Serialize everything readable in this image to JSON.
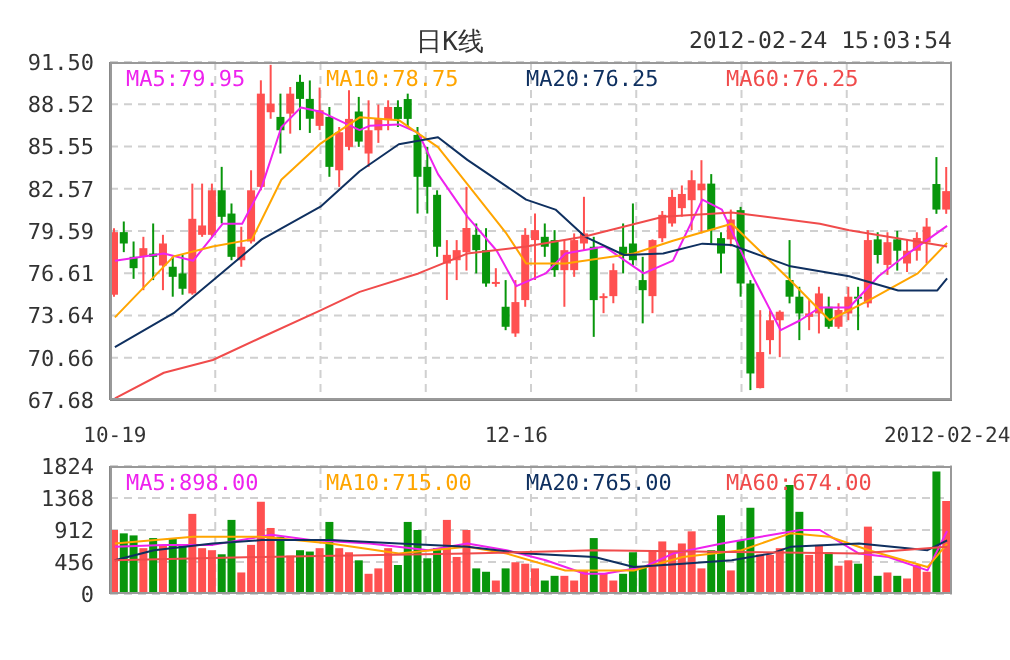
{
  "chart_data": [
    {
      "type": "candlestick",
      "title": "日K线",
      "annotations": [
        "2012-02-24 15:03:54"
      ],
      "categories": [
        "10-19",
        null,
        null,
        null,
        null,
        null,
        null,
        null,
        null,
        null,
        null,
        null,
        null,
        null,
        null,
        null,
        null,
        null,
        null,
        null,
        null,
        null,
        null,
        null,
        null,
        null,
        null,
        null,
        null,
        null,
        null,
        null,
        null,
        null,
        null,
        null,
        null,
        null,
        null,
        null,
        null,
        "12-16",
        null,
        null,
        null,
        null,
        null,
        null,
        null,
        null,
        null,
        null,
        null,
        null,
        null,
        null,
        null,
        null,
        null,
        null,
        null,
        null,
        null,
        null,
        null,
        null,
        null,
        null,
        null,
        null,
        null,
        null,
        null,
        null,
        null,
        null,
        null,
        null,
        null,
        null,
        null,
        null,
        null,
        null,
        null,
        "2012-02-24"
      ],
      "ohlc": [
        [
          75.1,
          79.79,
          74.96,
          79.51
        ],
        [
          79.51,
          80.26,
          78.1,
          78.71
        ],
        [
          77.77,
          78.85,
          76.22,
          76.97
        ],
        [
          77.77,
          79.18,
          75.42,
          78.38
        ],
        [
          78.0,
          80.12,
          76.13,
          77.77
        ],
        [
          77.16,
          79.32,
          75.42,
          78.71
        ],
        [
          77.07,
          77.77,
          74.96,
          76.36
        ],
        [
          76.6,
          77.91,
          75.1,
          75.52
        ],
        [
          75.19,
          82.93,
          75.1,
          80.45
        ],
        [
          79.32,
          82.93,
          79.18,
          79.98
        ],
        [
          79.32,
          82.93,
          79.18,
          82.46
        ],
        [
          82.46,
          84.11,
          80.12,
          80.59
        ],
        [
          80.82,
          81.53,
          77.53,
          77.77
        ],
        [
          77.53,
          79.89,
          77.07,
          78.48
        ],
        [
          78.85,
          83.87,
          78.71,
          82.46
        ],
        [
          82.7,
          90.21,
          82.46,
          89.27
        ],
        [
          87.96,
          91.3,
          87.5,
          88.57
        ],
        [
          87.63,
          89.27,
          85.05,
          86.69
        ],
        [
          87.86,
          89.74,
          86.45,
          89.27
        ],
        [
          90.1,
          90.6,
          86.7,
          88.9
        ],
        [
          88.9,
          90.2,
          86.5,
          87.5
        ],
        [
          87.0,
          89.7,
          86.7,
          88.1
        ],
        [
          87.63,
          88.33,
          83.41,
          84.11
        ],
        [
          83.87,
          86.92,
          82.7,
          86.55
        ],
        [
          85.52,
          89.51,
          85.28,
          87.49
        ],
        [
          88.01,
          89.04,
          85.52,
          85.89
        ],
        [
          85.05,
          88.8,
          84.11,
          86.69
        ],
        [
          86.69,
          88.5,
          85.8,
          87.49
        ],
        [
          87.4,
          88.8,
          86.69,
          88.33
        ],
        [
          88.33,
          88.8,
          86.92,
          87.49
        ],
        [
          88.89,
          89.27,
          86.92,
          87.49
        ],
        [
          86.36,
          86.92,
          80.82,
          83.41
        ],
        [
          84.11,
          85.52,
          80.82,
          82.7
        ],
        [
          82.14,
          82.46,
          77.77,
          78.48
        ],
        [
          77.3,
          78.95,
          74.73,
          77.91
        ],
        [
          77.53,
          78.95,
          76.13,
          78.24
        ],
        [
          78.1,
          82.7,
          76.8,
          79.8
        ],
        [
          79.32,
          80.12,
          76.6,
          78.24
        ],
        [
          78.24,
          79.79,
          75.66,
          75.89
        ],
        [
          75.9,
          76.97,
          75.66,
          76.0
        ],
        [
          74.25,
          76.13,
          72.6,
          72.84
        ],
        [
          72.37,
          76.13,
          72.13,
          74.58
        ],
        [
          74.72,
          79.79,
          74.25,
          79.32
        ],
        [
          78.95,
          80.82,
          76.13,
          79.65
        ],
        [
          79.18,
          80.12,
          77.77,
          78.48
        ],
        [
          78.95,
          79.65,
          76.36,
          76.83
        ],
        [
          76.83,
          78.95,
          74.25,
          78.24
        ],
        [
          76.83,
          79.42,
          76.36,
          78.95
        ],
        [
          78.71,
          82.0,
          78.24,
          79.42
        ],
        [
          78.48,
          79.18,
          72.13,
          74.72
        ],
        [
          74.9,
          75.2,
          73.8,
          75.0
        ],
        [
          75.0,
          77.3,
          74.5,
          76.83
        ],
        [
          78.48,
          80.12,
          76.6,
          77.91
        ],
        [
          78.71,
          81.53,
          77.16,
          77.53
        ],
        [
          76.13,
          77.77,
          73.08,
          75.42
        ],
        [
          75.0,
          79.0,
          73.8,
          78.95
        ],
        [
          79.08,
          81.0,
          78.8,
          80.73
        ],
        [
          80.12,
          82.5,
          79.9,
          81.99
        ],
        [
          81.2,
          82.8,
          80.6,
          82.2
        ],
        [
          81.76,
          83.87,
          79.65,
          83.17
        ],
        [
          82.46,
          84.58,
          79.42,
          82.93
        ],
        [
          82.93,
          83.6,
          78.71,
          79.65
        ],
        [
          79.09,
          79.5,
          76.6,
          78.0
        ],
        [
          79.0,
          81.1,
          78.5,
          80.4
        ],
        [
          81.06,
          81.29,
          74.96,
          75.89
        ],
        [
          75.89,
          76.13,
          68.38,
          69.55
        ],
        [
          68.52,
          74.01,
          68.5,
          71.06
        ],
        [
          71.9,
          74.0,
          70.9,
          73.3
        ],
        [
          73.3,
          74.0,
          70.7,
          73.9
        ],
        [
          76.13,
          78.95,
          74.49,
          74.96
        ],
        [
          74.96,
          75.66,
          71.9,
          73.78
        ],
        [
          73.54,
          74.72,
          72.6,
          73.78
        ],
        [
          73.78,
          75.66,
          72.37,
          75.19
        ],
        [
          74.25,
          74.96,
          72.7,
          72.84
        ],
        [
          72.84,
          74.5,
          72.7,
          74.02
        ],
        [
          73.78,
          75.66,
          73.3,
          74.96
        ],
        [
          74.96,
          75.66,
          72.6,
          74.9
        ],
        [
          74.49,
          79.65,
          74.2,
          78.95
        ],
        [
          79.0,
          79.5,
          77.3,
          77.9
        ],
        [
          77.2,
          79.5,
          76.5,
          78.8
        ],
        [
          79.0,
          79.6,
          76.8,
          78.2
        ],
        [
          77.3,
          79.0,
          76.7,
          78.2
        ],
        [
          78.2,
          79.5,
          77.5,
          79.1
        ],
        [
          78.8,
          80.5,
          77.3,
          79.9
        ],
        [
          82.9,
          84.8,
          80.8,
          81.1
        ],
        [
          81.1,
          84.1,
          80.8,
          82.4
        ]
      ],
      "colors": [
        "#ff5050",
        "#08960b",
        "#08960b",
        "#ff5050",
        "#08960b",
        "#ff5050",
        "#08960b",
        "#08960b",
        "#ff5050",
        "#ff5050",
        "#ff5050",
        "#08960b",
        "#08960b",
        "#ff5050",
        "#ff5050",
        "#ff5050",
        "#ff5050",
        "#08960b",
        "#ff5050",
        "#08960b",
        "#08960b",
        "#ff5050",
        "#08960b",
        "#ff5050",
        "#ff5050",
        "#08960b",
        "#ff5050",
        "#ff5050",
        "#ff5050",
        "#08960b",
        "#08960b",
        "#08960b",
        "#08960b",
        "#08960b",
        "#ff5050",
        "#ff5050",
        "#ff5050",
        "#08960b",
        "#08960b",
        "#ff5050",
        "#08960b",
        "#ff5050",
        "#ff5050",
        "#ff5050",
        "#08960b",
        "#08960b",
        "#ff5050",
        "#ff5050",
        "#ff5050",
        "#08960b",
        "#ff5050",
        "#ff5050",
        "#08960b",
        "#08960b",
        "#08960b",
        "#ff5050",
        "#ff5050",
        "#ff5050",
        "#ff5050",
        "#ff5050",
        "#ff5050",
        "#08960b",
        "#08960b",
        "#ff5050",
        "#08960b",
        "#08960b",
        "#ff5050",
        "#ff5050",
        "#ff5050",
        "#08960b",
        "#08960b",
        "#ff5050",
        "#ff5050",
        "#08960b",
        "#ff5050",
        "#ff5050",
        "#08960b",
        "#ff5050",
        "#08960b",
        "#ff5050",
        "#08960b",
        "#ff5050",
        "#ff5050",
        "#ff5050",
        "#08960b",
        "#ff5050"
      ],
      "series": [
        {
          "type": "line",
          "name": "MA5:79.95",
          "color": "#ee22ee",
          "values": [
            77.5,
            null,
            null,
            null,
            null,
            78.0,
            null,
            null,
            77.5,
            null,
            null,
            80.1,
            null,
            80.1,
            null,
            82.7,
            null,
            86.9,
            null,
            88.3,
            null,
            88.0,
            null,
            null,
            null,
            86.7,
            87.0,
            null,
            null,
            87.1,
            null,
            86.5,
            null,
            83.6,
            null,
            null,
            80.6,
            null,
            null,
            78.2,
            null,
            75.7,
            null,
            null,
            76.6,
            null,
            78.0,
            null,
            null,
            null,
            78.5,
            null,
            null,
            null,
            76.6,
            null,
            null,
            77.5,
            null,
            null,
            81.8,
            null,
            81.1,
            null,
            null,
            76.6,
            null,
            null,
            72.6,
            null,
            73.3,
            null,
            74.2,
            null,
            null,
            74.2,
            null,
            null,
            76.4,
            null,
            null,
            78.0,
            null,
            null,
            null,
            79.95
          ]
        },
        {
          "type": "line",
          "name": "MA10:78.75",
          "color": "#ffa500",
          "values": [
            73.5,
            null,
            null,
            null,
            null,
            null,
            77.8,
            null,
            null,
            null,
            78.5,
            null,
            null,
            null,
            79.0,
            null,
            null,
            83.2,
            null,
            null,
            null,
            85.75,
            null,
            null,
            null,
            87.6,
            null,
            null,
            null,
            87.4,
            null,
            null,
            null,
            85.5,
            null,
            null,
            82.9,
            null,
            null,
            null,
            79.4,
            null,
            77.3,
            null,
            null,
            null,
            77.3,
            null,
            null,
            null,
            null,
            null,
            null,
            78.0,
            null,
            null,
            null,
            78.9,
            null,
            null,
            null,
            null,
            null,
            80.1,
            null,
            null,
            null,
            null,
            null,
            76.1,
            null,
            null,
            null,
            73.3,
            null,
            null,
            null,
            74.7,
            null,
            null,
            null,
            null,
            76.6,
            null,
            null,
            78.75
          ]
        },
        {
          "type": "line",
          "name": "MA20:76.25",
          "color": "#0f3060",
          "values": [
            71.4,
            null,
            null,
            null,
            null,
            null,
            73.8,
            null,
            null,
            null,
            76.1,
            null,
            null,
            null,
            null,
            79.0,
            null,
            null,
            null,
            null,
            null,
            81.3,
            null,
            null,
            null,
            83.8,
            null,
            null,
            null,
            85.7,
            null,
            null,
            null,
            86.2,
            null,
            null,
            84.6,
            null,
            null,
            null,
            null,
            null,
            81.8,
            null,
            null,
            81.1,
            null,
            null,
            79.2,
            null,
            null,
            null,
            77.9,
            null,
            null,
            null,
            78.0,
            null,
            null,
            null,
            78.7,
            null,
            null,
            78.6,
            null,
            null,
            null,
            null,
            null,
            77.1,
            null,
            null,
            null,
            null,
            null,
            76.4,
            null,
            null,
            null,
            null,
            75.4,
            null,
            null,
            null,
            75.4,
            76.25
          ]
        },
        {
          "type": "line",
          "name": "MA60:76.25",
          "color": "#f04b4b",
          "values": [
            67.8,
            null,
            null,
            null,
            null,
            69.6,
            null,
            null,
            null,
            null,
            70.5,
            null,
            null,
            null,
            null,
            72.1,
            null,
            null,
            null,
            null,
            null,
            74.0,
            null,
            null,
            null,
            75.3,
            null,
            null,
            null,
            null,
            null,
            76.6,
            null,
            null,
            null,
            null,
            78.0,
            null,
            null,
            null,
            null,
            null,
            78.5,
            null,
            null,
            null,
            null,
            null,
            79.2,
            null,
            null,
            null,
            null,
            null,
            null,
            null,
            80.6,
            null,
            null,
            null,
            null,
            null,
            null,
            80.9,
            null,
            null,
            null,
            null,
            null,
            null,
            null,
            null,
            80.1,
            null,
            null,
            79.65,
            null,
            null,
            null,
            null,
            null,
            null,
            null,
            null,
            null,
            78.5
          ]
        }
      ],
      "ylim": [
        67.68,
        91.5
      ],
      "yticks": [
        67.68,
        70.66,
        73.64,
        76.61,
        79.59,
        82.57,
        85.55,
        88.52,
        {
          "value": 91.5,
          "label": "91.50"
        }
      ],
      "grid": true,
      "legend": "top"
    },
    {
      "type": "bar",
      "categories": [
        null,
        null,
        null,
        null,
        null,
        null,
        null,
        null,
        null,
        null,
        null,
        null,
        null,
        null,
        null,
        null,
        null,
        null,
        null,
        null,
        null,
        null,
        null,
        null,
        null,
        null,
        null,
        null,
        null,
        null,
        null,
        null,
        null,
        null,
        null,
        null,
        null,
        null,
        null,
        null,
        null,
        null,
        null,
        null,
        null,
        null,
        null,
        null,
        null,
        null,
        null,
        null,
        null,
        null,
        null,
        null,
        null,
        null,
        null,
        null,
        null,
        null,
        null,
        null,
        null,
        null,
        null,
        null,
        null,
        null,
        null,
        null,
        null,
        null,
        null,
        null,
        null,
        null,
        null,
        null,
        null,
        null,
        null,
        null,
        null,
        null
      ],
      "values": [
        912,
        864,
        835,
        653,
        797,
        700,
        797,
        691,
        1142,
        653,
        624,
        566,
        1056,
        307,
        700,
        1315,
        941,
        816,
        547,
        624,
        605,
        653,
        1027,
        653,
        595,
        480,
        288,
        365,
        653,
        413,
        1027,
        912,
        509,
        653,
        1056,
        528,
        912,
        365,
        317,
        192,
        365,
        451,
        432,
        365,
        192,
        259,
        259,
        192,
        336,
        797,
        288,
        192,
        288,
        595,
        384,
        624,
        749,
        605,
        720,
        893,
        365,
        624,
        1123,
        336,
        768,
        1229,
        566,
        557,
        653,
        1555,
        1171,
        557,
        700,
        595,
        403,
        480,
        432,
        960,
        259,
        307,
        259,
        221,
        413,
        317,
        1747,
        1325
      ],
      "colors": [
        "#ff5050",
        "#08960b",
        "#08960b",
        "#ff5050",
        "#08960b",
        "#ff5050",
        "#08960b",
        "#08960b",
        "#ff5050",
        "#ff5050",
        "#ff5050",
        "#08960b",
        "#08960b",
        "#ff5050",
        "#ff5050",
        "#ff5050",
        "#ff5050",
        "#08960b",
        "#ff5050",
        "#08960b",
        "#08960b",
        "#ff5050",
        "#08960b",
        "#ff5050",
        "#ff5050",
        "#08960b",
        "#ff5050",
        "#ff5050",
        "#ff5050",
        "#08960b",
        "#08960b",
        "#08960b",
        "#08960b",
        "#08960b",
        "#ff5050",
        "#ff5050",
        "#ff5050",
        "#08960b",
        "#08960b",
        "#ff5050",
        "#08960b",
        "#ff5050",
        "#ff5050",
        "#ff5050",
        "#08960b",
        "#08960b",
        "#ff5050",
        "#ff5050",
        "#ff5050",
        "#08960b",
        "#ff5050",
        "#ff5050",
        "#08960b",
        "#08960b",
        "#08960b",
        "#ff5050",
        "#ff5050",
        "#ff5050",
        "#ff5050",
        "#ff5050",
        "#ff5050",
        "#08960b",
        "#08960b",
        "#ff5050",
        "#08960b",
        "#08960b",
        "#ff5050",
        "#ff5050",
        "#ff5050",
        "#08960b",
        "#08960b",
        "#ff5050",
        "#ff5050",
        "#08960b",
        "#ff5050",
        "#ff5050",
        "#08960b",
        "#ff5050",
        "#08960b",
        "#ff5050",
        "#08960b",
        "#ff5050",
        "#ff5050",
        "#ff5050",
        "#08960b",
        "#ff5050"
      ],
      "series": [
        {
          "type": "line",
          "name": "MA5:898.00",
          "color": "#ee22ee",
          "values": [
            672,
            null,
            null,
            null,
            null,
            700,
            null,
            null,
            null,
            null,
            700,
            null,
            null,
            null,
            null,
            null,
            845,
            null,
            null,
            null,
            770,
            null,
            null,
            null,
            null,
            null,
            720,
            null,
            null,
            null,
            null,
            null,
            624,
            null,
            null,
            null,
            720,
            null,
            null,
            null,
            624,
            null,
            null,
            null,
            480,
            null,
            null,
            null,
            288,
            null,
            288,
            null,
            null,
            null,
            384,
            null,
            null,
            576,
            null,
            null,
            null,
            null,
            720,
            null,
            null,
            null,
            816,
            null,
            null,
            null,
            912,
            null,
            912,
            null,
            null,
            null,
            576,
            null,
            null,
            528,
            null,
            null,
            null,
            336,
            null,
            898
          ]
        },
        {
          "type": "line",
          "name": "MA10:715.00",
          "color": "#ffa500",
          "values": [
            720,
            null,
            null,
            null,
            null,
            null,
            null,
            null,
            816,
            null,
            null,
            null,
            null,
            null,
            null,
            816,
            null,
            null,
            null,
            null,
            null,
            null,
            720,
            null,
            null,
            null,
            null,
            null,
            null,
            576,
            null,
            null,
            null,
            null,
            null,
            null,
            672,
            null,
            null,
            null,
            576,
            null,
            null,
            null,
            null,
            null,
            336,
            null,
            null,
            null,
            null,
            null,
            null,
            336,
            null,
            null,
            null,
            null,
            528,
            null,
            null,
            null,
            null,
            null,
            624,
            null,
            null,
            null,
            null,
            864,
            null,
            null,
            null,
            816,
            null,
            null,
            null,
            624,
            null,
            null,
            null,
            null,
            null,
            384,
            null,
            715
          ]
        },
        {
          "type": "line",
          "name": "MA20:765.00",
          "color": "#0f3060",
          "values": [
            480,
            null,
            null,
            null,
            624,
            null,
            null,
            null,
            null,
            null,
            720,
            null,
            null,
            null,
            null,
            768,
            null,
            null,
            null,
            null,
            null,
            null,
            768,
            null,
            null,
            null,
            null,
            null,
            null,
            720,
            null,
            null,
            null,
            null,
            null,
            null,
            672,
            null,
            null,
            null,
            null,
            null,
            576,
            null,
            null,
            null,
            null,
            null,
            null,
            528,
            null,
            null,
            null,
            384,
            null,
            null,
            null,
            null,
            432,
            null,
            null,
            null,
            null,
            480,
            null,
            null,
            null,
            576,
            null,
            672,
            null,
            null,
            null,
            null,
            null,
            null,
            720,
            null,
            null,
            null,
            null,
            null,
            null,
            624,
            null,
            765
          ]
        },
        {
          "type": "line",
          "name": "MA60:674.00",
          "color": "#f04b4b",
          "values": [
            480,
            null,
            null,
            null,
            null,
            null,
            null,
            null,
            null,
            null,
            null,
            null,
            null,
            null,
            null,
            528,
            null,
            null,
            null,
            null,
            null,
            null,
            null,
            null,
            null,
            null,
            null,
            null,
            null,
            null,
            null,
            null,
            null,
            null,
            null,
            null,
            576,
            null,
            null,
            null,
            null,
            null,
            null,
            null,
            null,
            null,
            null,
            null,
            null,
            624,
            null,
            null,
            null,
            null,
            null,
            null,
            null,
            null,
            null,
            null,
            null,
            null,
            null,
            600,
            null,
            null,
            null,
            null,
            null,
            null,
            null,
            null,
            null,
            null,
            null,
            null,
            576,
            null,
            null,
            null,
            null,
            null,
            null,
            null,
            null,
            674
          ]
        }
      ],
      "ylim": [
        0,
        1824
      ],
      "yticks": [
        0,
        456,
        912,
        1368,
        1824
      ],
      "grid": true,
      "legend": "top",
      "tick_labels": "y"
    }
  ]
}
